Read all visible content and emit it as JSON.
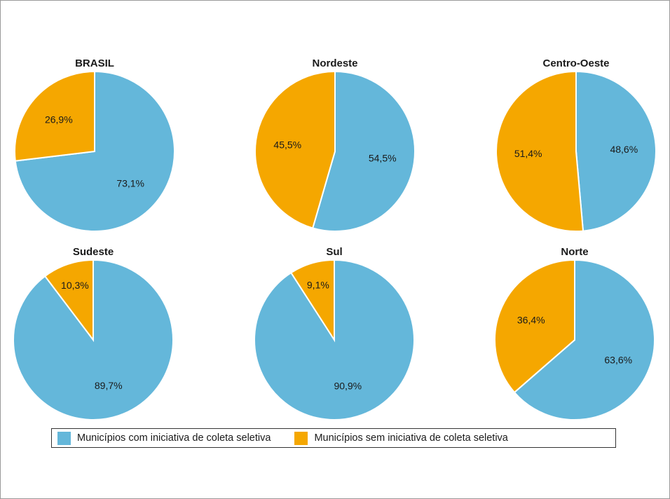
{
  "chart_data": [
    {
      "type": "pie",
      "title": "BRASIL",
      "slices": [
        {
          "series": "Municípios com iniciativa de coleta seletiva",
          "value": 73.1,
          "label": "73,1%"
        },
        {
          "series": "Municípios sem iniciativa de coleta seletiva",
          "value": 26.9,
          "label": "26,9%"
        }
      ]
    },
    {
      "type": "pie",
      "title": "Nordeste",
      "slices": [
        {
          "series": "Municípios com iniciativa de coleta seletiva",
          "value": 54.5,
          "label": "54,5%"
        },
        {
          "series": "Municípios sem iniciativa de coleta seletiva",
          "value": 45.5,
          "label": "45,5%"
        }
      ]
    },
    {
      "type": "pie",
      "title": "Centro-Oeste",
      "slices": [
        {
          "series": "Municípios com iniciativa de coleta seletiva",
          "value": 48.6,
          "label": "48,6%"
        },
        {
          "series": "Municípios sem iniciativa de coleta seletiva",
          "value": 51.4,
          "label": "51,4%"
        }
      ]
    },
    {
      "type": "pie",
      "title": "Sudeste",
      "slices": [
        {
          "series": "Municípios com iniciativa de coleta seletiva",
          "value": 89.7,
          "label": "89,7%"
        },
        {
          "series": "Municípios sem iniciativa de coleta seletiva",
          "value": 10.3,
          "label": "10,3%"
        }
      ]
    },
    {
      "type": "pie",
      "title": "Sul",
      "slices": [
        {
          "series": "Municípios com iniciativa de coleta seletiva",
          "value": 90.9,
          "label": "90,9%"
        },
        {
          "series": "Municípios sem iniciativa de coleta seletiva",
          "value": 9.1,
          "label": "9,1%"
        }
      ]
    },
    {
      "type": "pie",
      "title": "Norte",
      "slices": [
        {
          "series": "Municípios com iniciativa de coleta seletiva",
          "value": 63.6,
          "label": "63,6%"
        },
        {
          "series": "Municípios sem iniciativa de coleta seletiva",
          "value": 36.4,
          "label": "36,4%"
        }
      ]
    }
  ],
  "legend": {
    "position": "bottom",
    "items": [
      {
        "label": "Municípios com iniciativa de coleta seletiva",
        "color": "#64b7da"
      },
      {
        "label": "Municípios sem iniciativa de coleta seletiva",
        "color": "#f5a700"
      }
    ]
  }
}
